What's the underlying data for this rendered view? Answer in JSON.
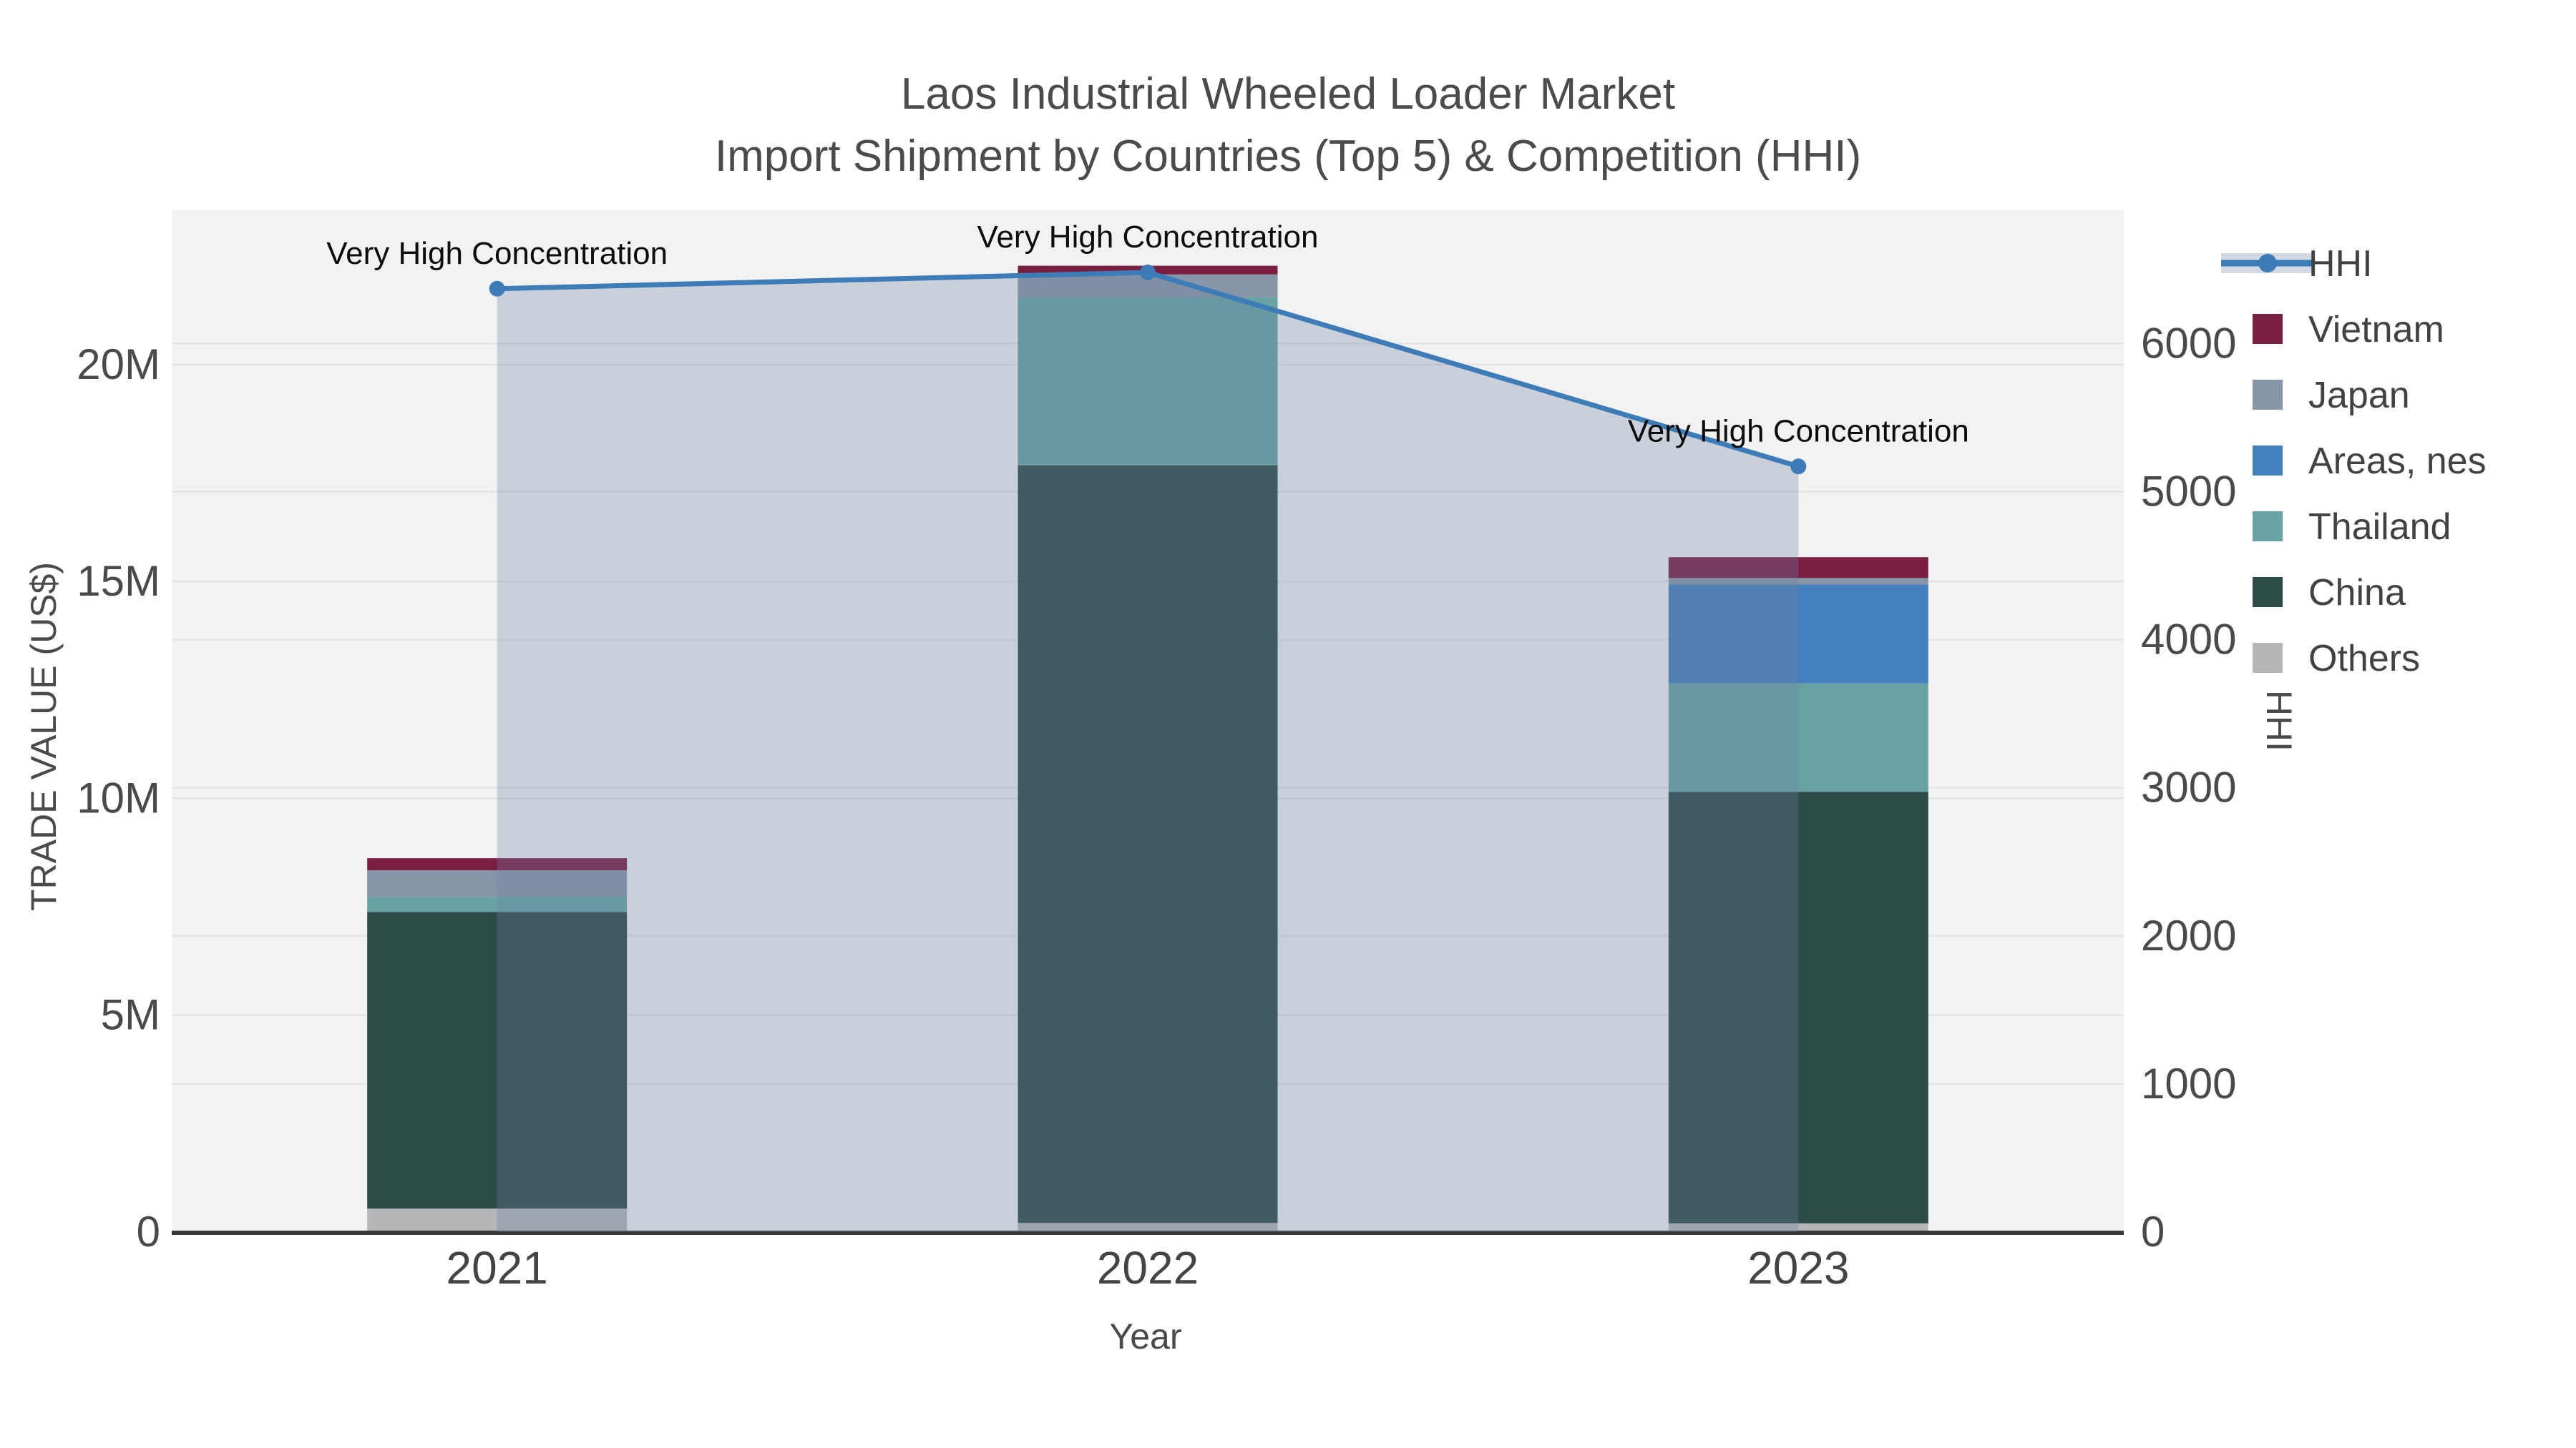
{
  "title": {
    "line1": "Laos Industrial Wheeled Loader Market",
    "line2": "Import Shipment by Countries (Top 5) & Competition (HHI)"
  },
  "axes": {
    "x": {
      "title": "Year",
      "categories": [
        "2021",
        "2022",
        "2023"
      ]
    },
    "y_left": {
      "title": "TRADE VALUE (US$)",
      "tick_labels": [
        "0",
        "5M",
        "10M",
        "15M",
        "20M"
      ],
      "tick_values": [
        0,
        5,
        10,
        15,
        20
      ],
      "range": [
        0,
        23.56
      ],
      "unit": "millions US$"
    },
    "y_right": {
      "title": "HHI",
      "tick_labels": [
        "0",
        "1000",
        "2000",
        "3000",
        "4000",
        "5000",
        "6000"
      ],
      "tick_values": [
        0,
        1000,
        2000,
        3000,
        4000,
        5000,
        6000
      ],
      "range": [
        0,
        6900
      ]
    }
  },
  "chart_data": {
    "type": "bar",
    "subtype": "stacked-bar-with-line",
    "categories": [
      "2021",
      "2022",
      "2023"
    ],
    "series": [
      {
        "name": "Vietnam",
        "type": "bar",
        "color": "#7a1e42",
        "values": [
          0.28,
          0.2,
          0.48
        ]
      },
      {
        "name": "Japan",
        "type": "bar",
        "color": "#8795a8",
        "values": [
          0.61,
          0.53,
          0.15
        ]
      },
      {
        "name": "Areas, nes",
        "type": "bar",
        "color": "#4480be",
        "values": [
          0.0,
          0.0,
          2.28
        ]
      },
      {
        "name": "Thailand",
        "type": "bar",
        "color": "#67a2a5",
        "values": [
          0.35,
          3.87,
          2.5
        ]
      },
      {
        "name": "China",
        "type": "bar",
        "color": "#2d4c48",
        "values": [
          6.84,
          17.47,
          9.95
        ]
      },
      {
        "name": "Others",
        "type": "bar",
        "color": "#b4b6b8",
        "values": [
          0.54,
          0.21,
          0.2
        ]
      }
    ],
    "stack_order_bottom_to_top": [
      "Others",
      "China",
      "Thailand",
      "Areas, nes",
      "Japan",
      "Vietnam"
    ],
    "bar_totals": [
      8.62,
      22.28,
      15.56
    ],
    "line_series": {
      "name": "HHI",
      "type": "line",
      "axis": "right",
      "color": "#3e7cb8",
      "area_fill": "rgba(110,130,158,0.30)",
      "values": [
        6370,
        6480,
        5170
      ]
    },
    "title": "Laos Industrial Wheeled Loader Market — Import Shipment by Countries (Top 5) & Competition (HHI)",
    "xlabel": "Year",
    "ylabel": "TRADE VALUE (US$)",
    "ylabel_right": "HHI",
    "grid": true,
    "legend_position": "right"
  },
  "annotations": [
    {
      "text": "Very High Concentration",
      "category": "2021"
    },
    {
      "text": "Very High Concentration",
      "category": "2022"
    },
    {
      "text": "Very High Concentration",
      "category": "2023"
    }
  ],
  "legend": {
    "items": [
      {
        "label": "HHI",
        "type": "line",
        "color": "#3e7cb8"
      },
      {
        "label": "Vietnam",
        "type": "swatch",
        "color": "#7a1e42"
      },
      {
        "label": "Japan",
        "type": "swatch",
        "color": "#8795a8"
      },
      {
        "label": "Areas, nes",
        "type": "swatch",
        "color": "#4480be"
      },
      {
        "label": "Thailand",
        "type": "swatch",
        "color": "#67a2a5"
      },
      {
        "label": "China",
        "type": "swatch",
        "color": "#2d4c48"
      },
      {
        "label": "Others",
        "type": "swatch",
        "color": "#b4b6b8"
      }
    ]
  },
  "colors": {
    "plot_background": "#f2f2f2",
    "page_background": "#ffffff",
    "gridline": "#e4e4e4",
    "axis_line": "#383838",
    "annotation_text": "#0d0d0d"
  }
}
